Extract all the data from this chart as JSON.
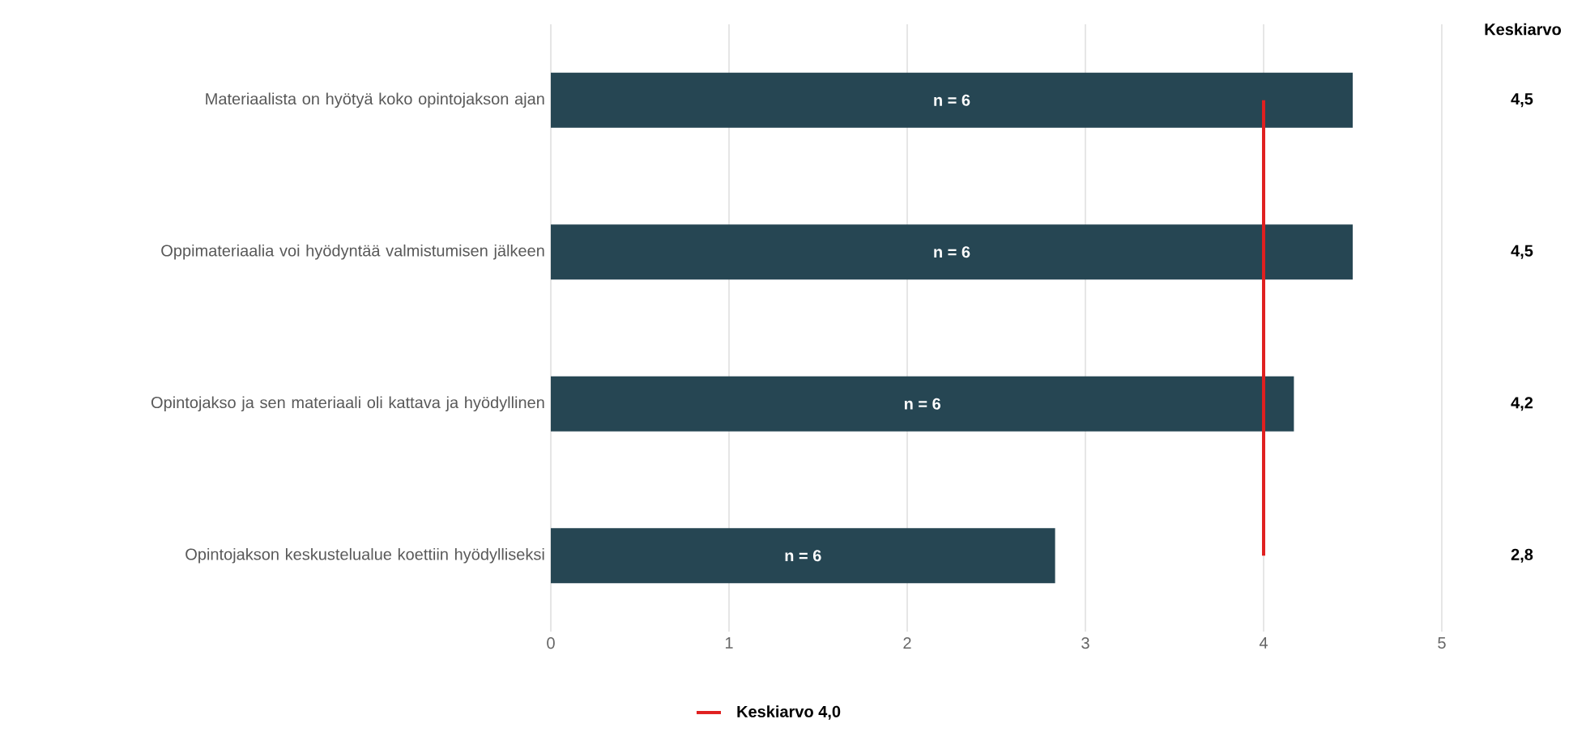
{
  "chart_data": {
    "type": "bar",
    "orientation": "horizontal",
    "categories": [
      "Materiaalista on hyötyä koko opintojakson ajan",
      "Oppimateriaalia voi hyödyntää valmistumisen jälkeen",
      "Opintojakso ja sen materiaali oli kattava ja hyödyllinen",
      "Opintojakson keskustelualue koettiin hyödylliseksi"
    ],
    "values": [
      4.5,
      4.5,
      4.17,
      2.83
    ],
    "value_labels": [
      "4,5",
      "4,5",
      "4,2",
      "2,8"
    ],
    "color": "#264653",
    "xlim": [
      0,
      5
    ],
    "xticks": [
      0,
      1,
      2,
      3,
      4,
      5
    ],
    "grid": "x",
    "legend": "bottom",
    "ref_lines": [
      {
        "axis": "x",
        "value": 4,
        "label": "Keskiarvo 4,0",
        "color": "#e02020"
      }
    ],
    "annotations": [
      "Keskiarvo",
      "n = 6",
      "n = 6",
      "n = 6",
      "n = 6"
    ]
  }
}
